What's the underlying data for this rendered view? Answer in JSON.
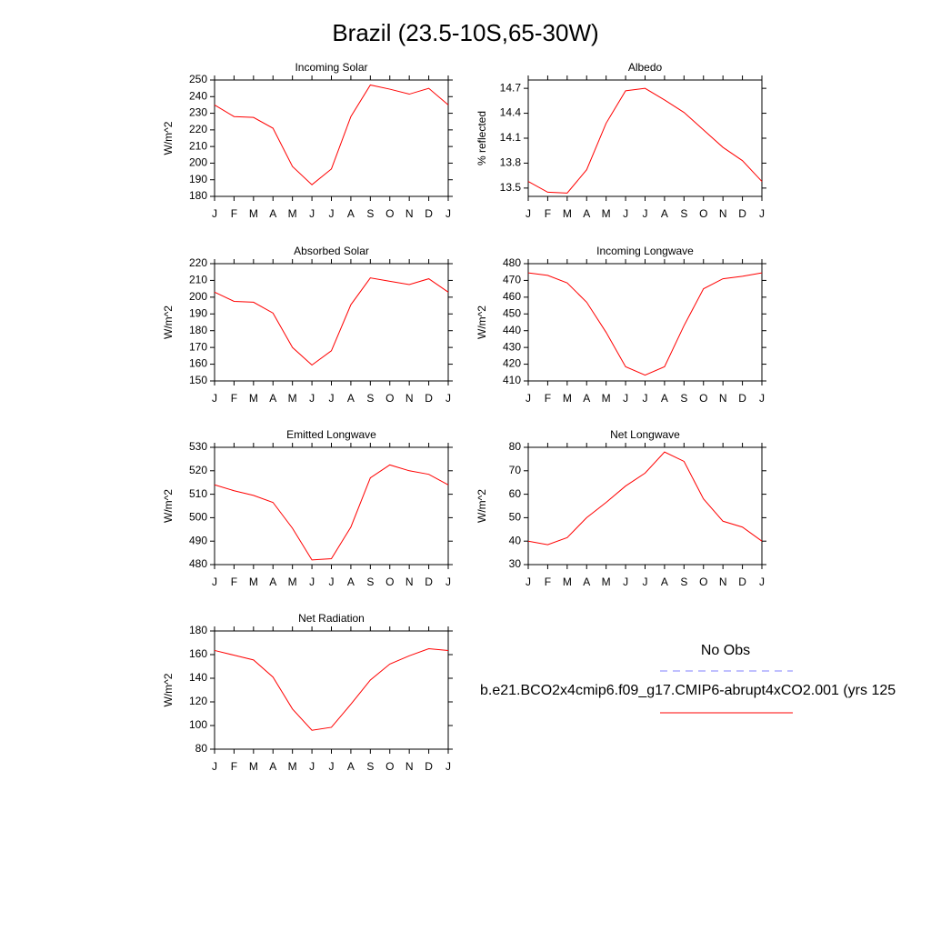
{
  "title": "Brazil (23.5-10S,65-30W)",
  "legend": [
    {
      "name": "No Obs",
      "color": "#8080ff",
      "dashed": true
    },
    {
      "name": "b.e21.BCO2x4cmip6.f09_g17.CMIP6-abrupt4xCO2.001 (yrs 125",
      "color": "#ff0000",
      "dashed": false
    }
  ],
  "chart_data": [
    {
      "type": "line",
      "title": "Incoming Solar",
      "y_label": "W/m^2",
      "color": "#ff0000",
      "categories": [
        "J",
        "F",
        "M",
        "A",
        "M",
        "J",
        "J",
        "A",
        "S",
        "O",
        "N",
        "D",
        "J"
      ],
      "values": [
        235,
        228,
        227.5,
        221,
        198,
        187,
        196.5,
        228,
        247,
        244.5,
        241.5,
        245,
        235
      ],
      "ylim": [
        180,
        250
      ],
      "yticks": [
        180,
        190,
        200,
        210,
        220,
        230,
        240,
        250
      ]
    },
    {
      "type": "line",
      "title": "Albedo",
      "y_label": "% reflected",
      "color": "#ff0000",
      "categories": [
        "J",
        "F",
        "M",
        "A",
        "M",
        "J",
        "J",
        "A",
        "S",
        "O",
        "N",
        "D",
        "J"
      ],
      "values": [
        13.58,
        13.45,
        13.44,
        13.72,
        14.28,
        14.67,
        14.7,
        14.56,
        14.41,
        14.2,
        13.99,
        13.83,
        13.58
      ],
      "ylim": [
        13.4,
        14.8
      ],
      "yticks": [
        13.5,
        13.8,
        14.1,
        14.4,
        14.7
      ]
    },
    {
      "type": "line",
      "title": "Absorbed Solar",
      "y_label": "W/m^2",
      "color": "#ff0000",
      "categories": [
        "J",
        "F",
        "M",
        "A",
        "M",
        "J",
        "J",
        "A",
        "S",
        "O",
        "N",
        "D",
        "J"
      ],
      "values": [
        203,
        197.5,
        197,
        190.5,
        170,
        159.5,
        168,
        195.5,
        211.5,
        209.5,
        207.5,
        211,
        203
      ],
      "ylim": [
        150,
        220
      ],
      "yticks": [
        150,
        160,
        170,
        180,
        190,
        200,
        210,
        220
      ]
    },
    {
      "type": "line",
      "title": "Incoming Longwave",
      "y_label": "W/m^2",
      "color": "#ff0000",
      "categories": [
        "J",
        "F",
        "M",
        "A",
        "M",
        "J",
        "J",
        "A",
        "S",
        "O",
        "N",
        "D",
        "J"
      ],
      "values": [
        474.5,
        473,
        468.5,
        457,
        439,
        418.5,
        413.5,
        418.5,
        443,
        465,
        471,
        472.5,
        474.5
      ],
      "ylim": [
        410,
        480
      ],
      "yticks": [
        410,
        420,
        430,
        440,
        450,
        460,
        470,
        480
      ]
    },
    {
      "type": "line",
      "title": "Emitted Longwave",
      "y_label": "W/m^2",
      "color": "#ff0000",
      "categories": [
        "J",
        "F",
        "M",
        "A",
        "M",
        "J",
        "J",
        "A",
        "S",
        "O",
        "N",
        "D",
        "J"
      ],
      "values": [
        514,
        511.5,
        509.5,
        506.5,
        495.5,
        482,
        482.5,
        496,
        517,
        522.5,
        520,
        518.5,
        514
      ],
      "ylim": [
        480,
        530
      ],
      "yticks": [
        480,
        490,
        500,
        510,
        520,
        530
      ]
    },
    {
      "type": "line",
      "title": "Net Longwave",
      "y_label": "W/m^2",
      "color": "#ff0000",
      "categories": [
        "J",
        "F",
        "M",
        "A",
        "M",
        "J",
        "J",
        "A",
        "S",
        "O",
        "N",
        "D",
        "J"
      ],
      "values": [
        40,
        38.5,
        41.5,
        50,
        56.5,
        63.5,
        69,
        78,
        74,
        58,
        48.5,
        46,
        40
      ],
      "ylim": [
        30,
        80
      ],
      "yticks": [
        30,
        40,
        50,
        60,
        70,
        80
      ]
    },
    {
      "type": "line",
      "title": "Net Radiation",
      "y_label": "W/m^2",
      "color": "#ff0000",
      "categories": [
        "J",
        "F",
        "M",
        "A",
        "M",
        "J",
        "J",
        "A",
        "S",
        "O",
        "N",
        "D",
        "J"
      ],
      "values": [
        163.5,
        159.5,
        155.5,
        141,
        114,
        96,
        98.5,
        118,
        138.5,
        152,
        159,
        165,
        163.5
      ],
      "ylim": [
        80,
        180
      ],
      "yticks": [
        80,
        100,
        120,
        140,
        160,
        180
      ]
    }
  ]
}
